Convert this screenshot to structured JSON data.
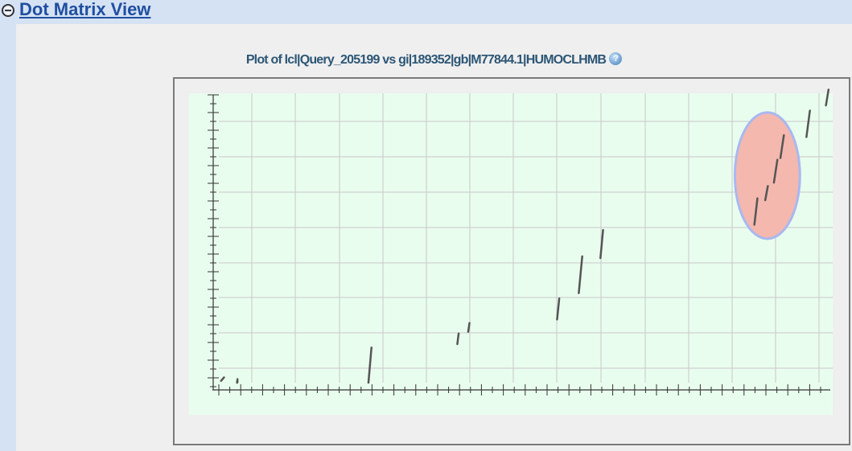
{
  "section": {
    "title": "Dot Matrix View",
    "toggle_icon": "collapse-minus-icon"
  },
  "plot": {
    "title": "Plot of lcl|Query_205199 vs gi|189352|gb|M77844.1|HUMOCLHMB",
    "help_icon": "help-question-icon",
    "background_color": "#e9fdee",
    "grid_color": "#c8c8c8",
    "segment_color": "#555555",
    "highlight": {
      "fill": "#f4b8ae",
      "stroke": "#a8b8f0"
    }
  },
  "chart_data": {
    "type": "scatter",
    "title": "",
    "xlabel": "",
    "ylabel": "",
    "x_ticks_labeled": false,
    "y_ticks_labeled": false,
    "grid": true,
    "segments": [
      {
        "x1": 0.5,
        "y1": 0.5,
        "x2": 1.2,
        "y2": 1.5
      },
      {
        "x1": 4.2,
        "y1": 0.0,
        "x2": 4.3,
        "y2": 1.0
      },
      {
        "x1": 4.25,
        "y1": 0.0,
        "x2": 4.32,
        "y2": 0.4
      },
      {
        "x1": 34.5,
        "y1": 0.0,
        "x2": 35.2,
        "y2": 10.0
      },
      {
        "x1": 55.0,
        "y1": 11.0,
        "x2": 55.3,
        "y2": 14.0
      },
      {
        "x1": 57.5,
        "y1": 14.5,
        "x2": 57.8,
        "y2": 17.0
      },
      {
        "x1": 78.0,
        "y1": 18.0,
        "x2": 78.5,
        "y2": 24.0
      },
      {
        "x1": 83.0,
        "y1": 25.5,
        "x2": 83.8,
        "y2": 36.0
      },
      {
        "x1": 88.0,
        "y1": 35.5,
        "x2": 88.6,
        "y2": 43.5
      },
      {
        "x1": 123.5,
        "y1": 45.0,
        "x2": 124.2,
        "y2": 52.5
      },
      {
        "x1": 126.0,
        "y1": 52.0,
        "x2": 126.6,
        "y2": 56.0
      },
      {
        "x1": 128.0,
        "y1": 57.0,
        "x2": 128.8,
        "y2": 63.5
      },
      {
        "x1": 129.5,
        "y1": 64.0,
        "x2": 130.3,
        "y2": 70.5
      },
      {
        "x1": 135.5,
        "y1": 70.0,
        "x2": 136.3,
        "y2": 77.5
      },
      {
        "x1": 140.0,
        "y1": 79.0,
        "x2": 140.6,
        "y2": 83.5
      }
    ],
    "xlim": [
      0,
      141
    ],
    "ylim": [
      0,
      82
    ],
    "highlight_region": {
      "cx": 126.5,
      "cy": 59.0,
      "rx": 7.5,
      "ry": 18.0
    }
  }
}
